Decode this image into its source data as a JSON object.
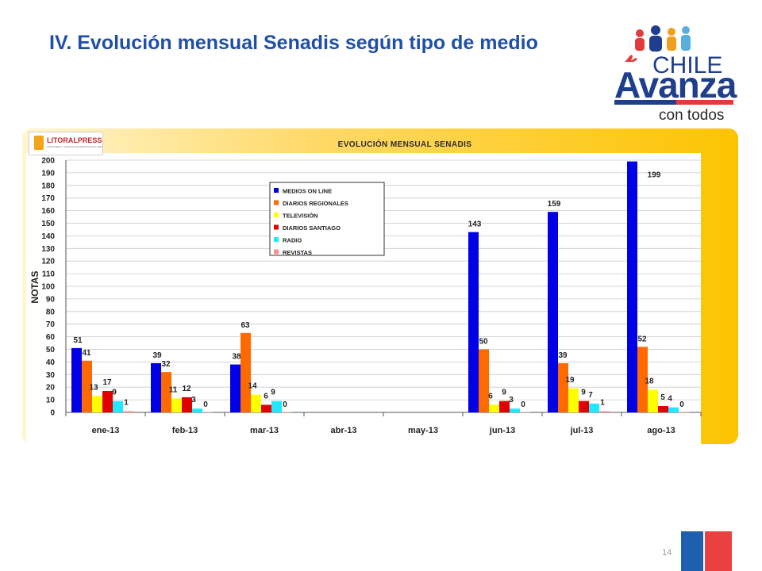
{
  "slide": {
    "title": "IV. Evolución mensual Senadis según tipo de medio",
    "page_number": "14"
  },
  "logos": {
    "brand_line1": "CHILE",
    "brand_line2": "Avanza",
    "brand_line3": "con todos",
    "provider": "LITORALPRESS",
    "provider_sub": "MONITOREO Y ANÁLISIS DE MEDIOS Desde 1997"
  },
  "colors": {
    "title": "#1f4fa8",
    "panel": "#fcc400",
    "series": [
      "#0000e6",
      "#ff6a00",
      "#ffff00",
      "#e00000",
      "#22e8ff",
      "#ff9090"
    ]
  },
  "chart_data": {
    "type": "bar",
    "title": "EVOLUCIÓN MENSUAL SENADIS",
    "xlabel": "",
    "ylabel": "NOTAS",
    "ylim": [
      0,
      200
    ],
    "yticks": [
      0,
      10,
      20,
      30,
      40,
      50,
      60,
      70,
      80,
      90,
      100,
      110,
      120,
      130,
      140,
      150,
      160,
      170,
      180,
      190,
      200
    ],
    "grid": true,
    "legend": "top-center",
    "categories": [
      "ene-13",
      "feb-13",
      "mar-13",
      "abr-13",
      "may-13",
      "jun-13",
      "jul-13",
      "ago-13"
    ],
    "series": [
      {
        "name": "MEDIOS ON LINE",
        "values": [
          51,
          39,
          38,
          null,
          null,
          143,
          159,
          199
        ]
      },
      {
        "name": "DIARIOS REGIONALES",
        "values": [
          41,
          32,
          63,
          null,
          null,
          50,
          39,
          52
        ]
      },
      {
        "name": "TELEVISIÓN",
        "values": [
          13,
          11,
          14,
          null,
          null,
          6,
          19,
          18
        ]
      },
      {
        "name": "DIARIOS SANTIAGO",
        "values": [
          17,
          12,
          6,
          null,
          null,
          9,
          9,
          5
        ]
      },
      {
        "name": "RADIO",
        "values": [
          9,
          3,
          9,
          null,
          null,
          3,
          7,
          4
        ]
      },
      {
        "name": "REVISTAS",
        "values": [
          1,
          0,
          0,
          null,
          null,
          0,
          1,
          0
        ]
      }
    ]
  }
}
